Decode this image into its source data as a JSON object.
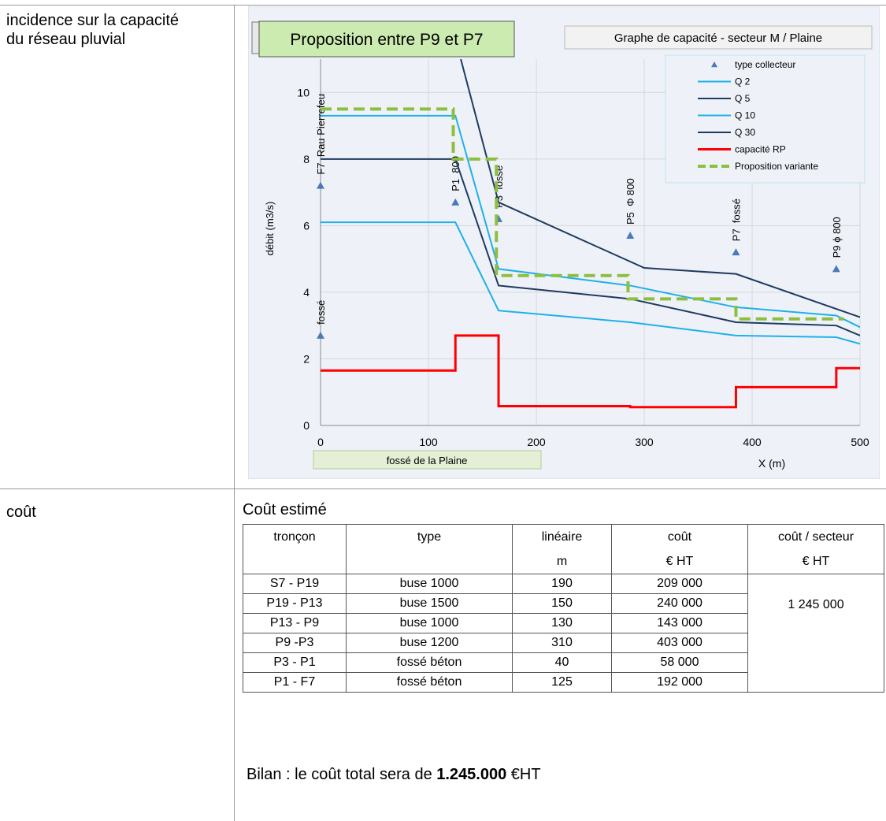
{
  "rows": [
    {
      "label": "incidence sur la capacité du réseau pluvial"
    },
    {
      "label": "coût"
    }
  ],
  "chart_data": {
    "type": "line",
    "title": "Proposition entre P9 et P7",
    "subtitle": "Graphe de capacité - secteur M / Plaine",
    "ylabel": "débit (m3/s)",
    "xlabel": "X (m)",
    "annotation": "fossé de la Plaine",
    "xlim": [
      0,
      500
    ],
    "xticks": [
      0,
      100,
      200,
      300,
      400,
      500
    ],
    "ylim": [
      0,
      11
    ],
    "yticks": [
      0,
      2,
      4,
      6,
      8,
      10
    ],
    "grid": true,
    "legend": "top-right",
    "series": [
      {
        "name": "type collecteur",
        "color": "#4a7ab8",
        "marker": "triangle",
        "x": [
          0,
          0,
          125,
          165,
          287,
          385,
          478
        ],
        "values": [
          7.2,
          2.7,
          6.7,
          6.2,
          5.7,
          5.2,
          4.7
        ],
        "labels": [
          "F7  Rau Pierrefeu",
          "fossé",
          "P1  800",
          "P3  fossé",
          "P5  Φ 800",
          "P7  fossé",
          "P9 ϕ 800"
        ]
      },
      {
        "name": "Q 2",
        "color": "#1fb0e8",
        "x": [
          0,
          125,
          165,
          287,
          385,
          478,
          500
        ],
        "values": [
          6.1,
          6.1,
          3.45,
          3.1,
          2.7,
          2.65,
          2.45
        ]
      },
      {
        "name": "Q 5",
        "color": "#1f3a5f",
        "x": [
          0,
          125,
          165,
          287,
          385,
          478,
          500
        ],
        "values": [
          8.0,
          8.0,
          4.2,
          3.8,
          3.1,
          3.0,
          2.7
        ]
      },
      {
        "name": "Q 10",
        "color": "#1fb0e8",
        "x": [
          0,
          125,
          165,
          287,
          385,
          478,
          500
        ],
        "values": [
          9.3,
          9.3,
          4.7,
          4.2,
          3.55,
          3.3,
          2.95
        ]
      },
      {
        "name": "Q 30",
        "color": "#1f3a5f",
        "x": [
          130,
          165,
          300,
          385,
          500
        ],
        "values": [
          11,
          6.7,
          4.73,
          4.55,
          3.25
        ]
      },
      {
        "name": "capacité RP",
        "color": "#ff0000",
        "width": 3,
        "x": [
          0,
          125,
          125,
          165,
          165,
          287,
          287,
          385,
          385,
          478,
          478,
          500
        ],
        "values": [
          1.65,
          1.65,
          2.7,
          2.7,
          0.58,
          0.58,
          0.55,
          0.55,
          1.15,
          1.15,
          1.72,
          1.72
        ]
      },
      {
        "name": "Proposition variante",
        "color": "#8cbf3f",
        "width": 4,
        "dash": true,
        "x": [
          0,
          123,
          123,
          163,
          163,
          285,
          285,
          385,
          385,
          485
        ],
        "values": [
          9.5,
          9.5,
          8.0,
          8.0,
          4.5,
          4.5,
          3.8,
          3.8,
          3.2,
          3.2
        ]
      }
    ]
  },
  "cost": {
    "title": "Coût estimé",
    "columns": [
      {
        "label": "tronçon"
      },
      {
        "label": "type"
      },
      {
        "label": "linéaire",
        "unit": "m"
      },
      {
        "label": "coût",
        "unit": "€ HT"
      },
      {
        "label": "coût / secteur",
        "unit": "€ HT"
      }
    ],
    "rows": [
      [
        "S7 - P19",
        "buse 1000",
        "190",
        "209 000"
      ],
      [
        "P19 - P13",
        "buse 1500",
        "150",
        "240 000"
      ],
      [
        "P13 - P9",
        "buse 1000",
        "130",
        "143 000"
      ],
      [
        "P9 -P3",
        "buse 1200",
        "310",
        "403 000"
      ],
      [
        "P3 - P1",
        "fossé béton",
        "40",
        "58 000"
      ],
      [
        "P1 - F7",
        "fossé béton",
        "125",
        "192 000"
      ]
    ],
    "sector_total": "1 245 000"
  },
  "bilan": {
    "text": "Bilan : le coût total sera de ",
    "amount": "1.245.000",
    "unit": " €HT"
  }
}
